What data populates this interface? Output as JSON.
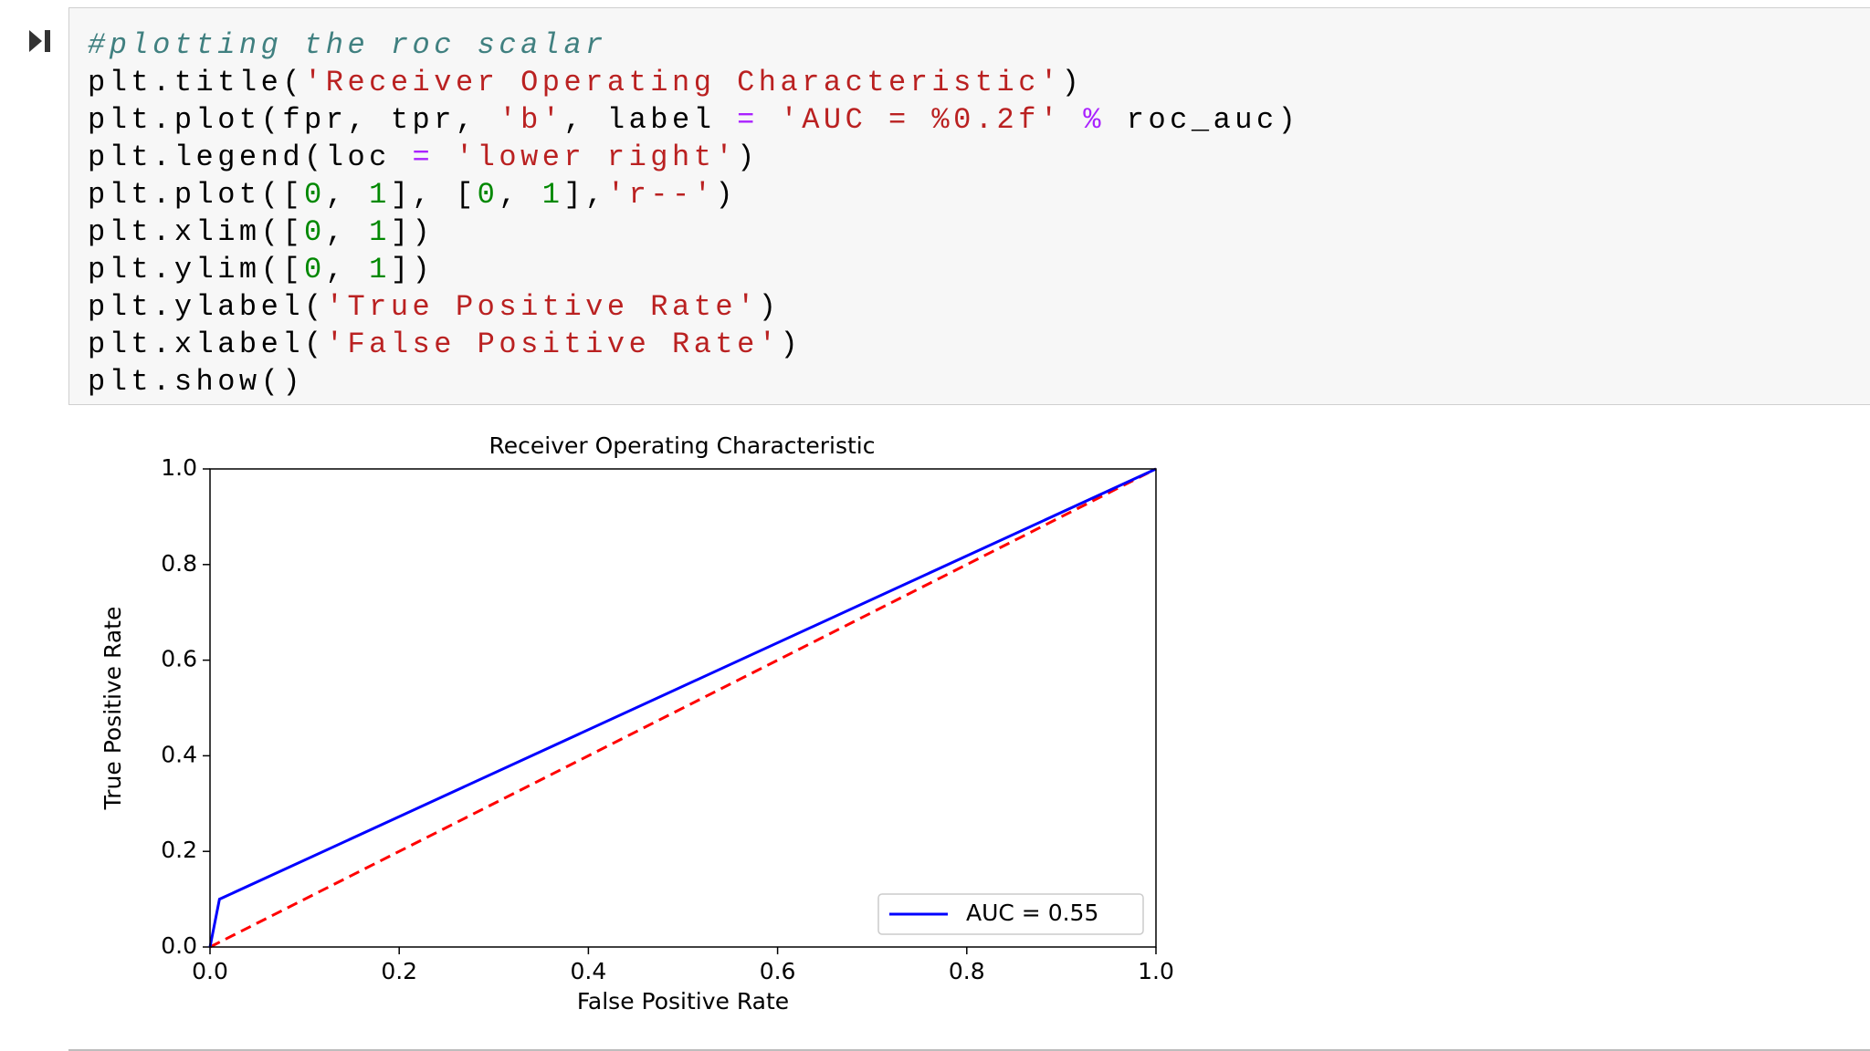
{
  "code": {
    "lines": [
      [
        "#plotting the roc scalar"
      ],
      [
        "plt.title(",
        "'Receiver Operating Characteristic'",
        ")"
      ],
      [
        "plt.plot(fpr, tpr, ",
        "'b'",
        ", label ",
        "=",
        " ",
        "'AUC = %0.2f'",
        " ",
        "%",
        " roc_auc)"
      ],
      [
        "plt.legend(loc ",
        "=",
        " ",
        "'lower right'",
        ")"
      ],
      [
        "plt.plot([",
        "0",
        ", ",
        "1",
        "], [",
        "0",
        ", ",
        "1",
        "],",
        "'r--'",
        ")"
      ],
      [
        "plt.xlim([",
        "0",
        ", ",
        "1",
        "])"
      ],
      [
        "plt.ylim([",
        "0",
        ", ",
        "1",
        "])"
      ],
      [
        "plt.ylabel(",
        "'True Positive Rate'",
        ")"
      ],
      [
        "plt.xlabel(",
        "'False Positive Rate'",
        ")"
      ],
      [
        "plt.show()"
      ]
    ]
  },
  "chart_data": {
    "type": "line",
    "title": "Receiver Operating Characteristic",
    "xlabel": "False Positive Rate",
    "ylabel": "True Positive Rate",
    "series": [
      {
        "name": "AUC = 0.55",
        "color": "#0000ff",
        "linestyle": "solid",
        "x": [
          0,
          0.01,
          1
        ],
        "values": [
          0,
          0.1,
          1
        ]
      },
      {
        "color": "#ff0000",
        "linestyle": "dashed",
        "x": [
          0,
          1
        ],
        "values": [
          0,
          1
        ]
      }
    ],
    "xlim": [
      0,
      1
    ],
    "ylim": [
      0,
      1
    ],
    "xticks": [
      {
        "value": 0,
        "label": "0.0"
      },
      0.2,
      0.4,
      0.6,
      0.8,
      {
        "value": 1,
        "label": "1.0"
      }
    ],
    "yticks": [
      {
        "value": 0,
        "label": "0.0"
      },
      0.2,
      0.4,
      0.6,
      0.8,
      {
        "value": 1,
        "label": "1.0"
      }
    ],
    "legend": "lower right",
    "grid": false
  }
}
